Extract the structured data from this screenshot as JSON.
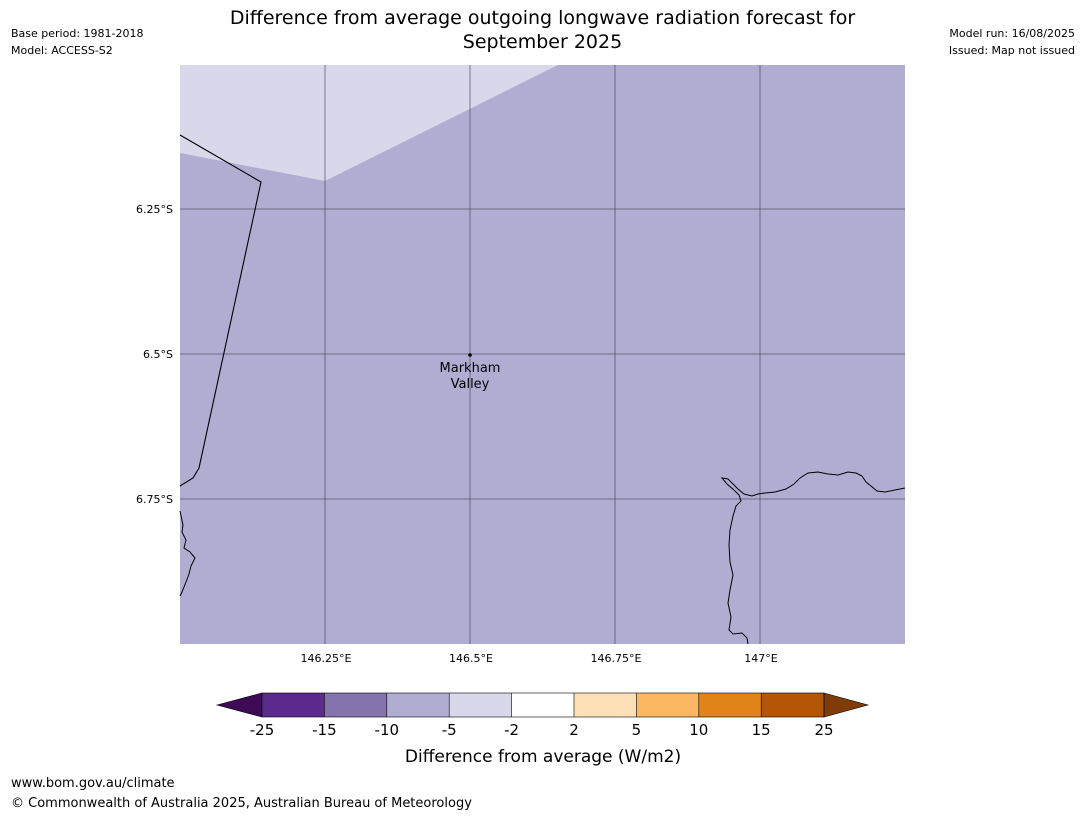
{
  "header": {
    "base_period": "Base period: 1981-2018",
    "model": "Model: ACCESS-S2",
    "title_line1": "Difference from average outgoing longwave radiation forecast for",
    "title_line2": "September 2025",
    "model_run": "Model run: 16/08/2025",
    "issued": "Issued: Map not issued"
  },
  "map": {
    "lat_labels": [
      "6.25°S",
      "6.5°S",
      "6.75°S"
    ],
    "lon_labels": [
      "146.25°E",
      "146.5°E",
      "146.75°E",
      "147°E"
    ],
    "place_label_line1": "Markham",
    "place_label_line2": "Valley",
    "background_color": "#b1acd2",
    "light_region_color": "#d8d8ea"
  },
  "colorbar": {
    "title": "Difference from average (W/m2)",
    "tick_labels": [
      "-25",
      "-15",
      "-10",
      "-5",
      "-2",
      "2",
      "5",
      "10",
      "15",
      "25"
    ],
    "colors": [
      "#3f0a55",
      "#5a2a8c",
      "#8473ad",
      "#b1acd2",
      "#d8d8ea",
      "#ffffff",
      "#fde0b6",
      "#fbb764",
      "#e08318",
      "#b25505",
      "#7f3b08"
    ]
  },
  "footer": {
    "url": "www.bom.gov.au/climate",
    "copyright": "© Commonwealth of Australia 2025, Australian Bureau of Meteorology"
  }
}
